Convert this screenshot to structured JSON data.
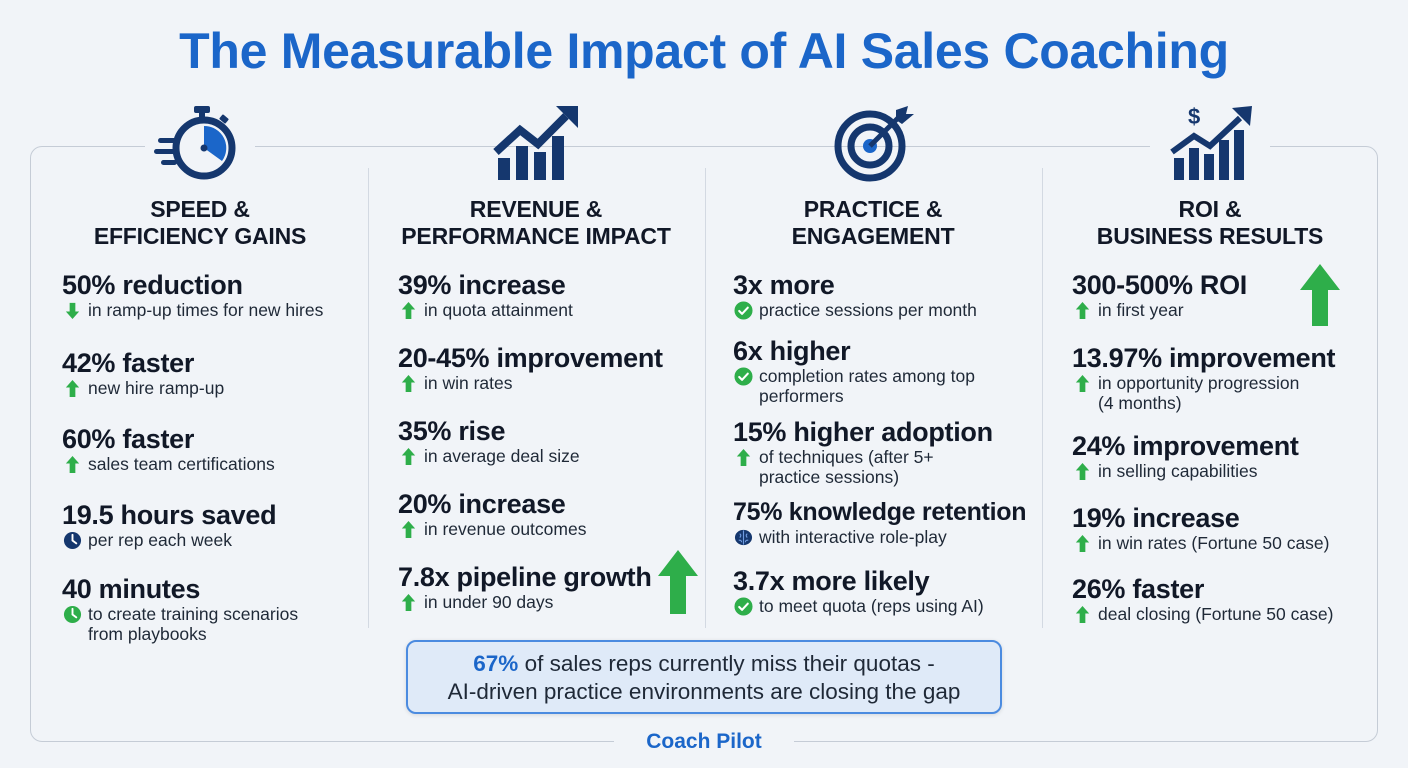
{
  "title": "The Measurable Impact of AI Sales Coaching",
  "colors": {
    "accent": "#1b66c9",
    "navy": "#15376e",
    "green": "#2eae4a"
  },
  "columns": [
    {
      "icon": "stopwatch-icon",
      "heading_line1": "SPEED &",
      "heading_line2": "EFFICIENCY GAINS",
      "stats": [
        {
          "value": "50% reduction",
          "desc_lines": [
            "in ramp-up times for new hires"
          ],
          "icon": "arrow-down-icon"
        },
        {
          "value": "42% faster",
          "desc_lines": [
            "new hire ramp-up"
          ],
          "icon": "arrow-up-icon"
        },
        {
          "value": "60% faster",
          "desc_lines": [
            "sales team certifications"
          ],
          "icon": "arrow-up-icon"
        },
        {
          "value": "19.5 hours saved",
          "desc_lines": [
            "per rep each week"
          ],
          "icon": "clock-navy-icon"
        },
        {
          "value": "40 minutes",
          "desc_lines": [
            "to create training scenarios",
            "from playbooks"
          ],
          "icon": "clock-green-icon"
        }
      ]
    },
    {
      "icon": "bar-chart-growth-icon",
      "heading_line1": "REVENUE &",
      "heading_line2": "PERFORMANCE IMPACT",
      "stats": [
        {
          "value": "39% increase",
          "desc_lines": [
            "in quota attainment"
          ],
          "icon": "arrow-up-icon"
        },
        {
          "value": "20-45% improvement",
          "desc_lines": [
            "in win rates"
          ],
          "icon": "arrow-up-icon"
        },
        {
          "value": "35% rise",
          "desc_lines": [
            "in average deal size"
          ],
          "icon": "arrow-up-icon"
        },
        {
          "value": "20% increase",
          "desc_lines": [
            "in revenue outcomes"
          ],
          "icon": "arrow-up-icon"
        },
        {
          "value": "7.8x pipeline growth",
          "desc_lines": [
            "in under 90 days"
          ],
          "icon": "arrow-up-icon"
        }
      ]
    },
    {
      "icon": "target-icon",
      "heading_line1": "PRACTICE &",
      "heading_line2": "ENGAGEMENT",
      "stats": [
        {
          "value": "3x more",
          "desc_lines": [
            "practice sessions per month"
          ],
          "icon": "check-circle-icon"
        },
        {
          "value": "6x higher",
          "desc_lines": [
            "completion rates among top",
            "performers"
          ],
          "icon": "check-circle-icon"
        },
        {
          "value": "15% higher adoption",
          "desc_lines": [
            "of techniques (after 5+",
            "practice sessions)"
          ],
          "icon": "arrow-up-icon"
        },
        {
          "value": "75% knowledge retention",
          "desc_lines": [
            "with interactive role-play"
          ],
          "icon": "brain-icon"
        },
        {
          "value": "3.7x more likely",
          "desc_lines": [
            "to meet quota (reps using AI)"
          ],
          "icon": "check-circle-icon"
        }
      ]
    },
    {
      "icon": "roi-chart-icon",
      "heading_line1": "ROI &",
      "heading_line2": "BUSINESS RESULTS",
      "stats": [
        {
          "value": "300-500% ROI",
          "desc_lines": [
            "in first year"
          ],
          "icon": "arrow-up-icon"
        },
        {
          "value": "13.97% improvement",
          "desc_lines": [
            "in opportunity progression",
            "(4 months)"
          ],
          "icon": "arrow-up-icon"
        },
        {
          "value": "24% improvement",
          "desc_lines": [
            "in selling capabilities"
          ],
          "icon": "arrow-up-icon"
        },
        {
          "value": "19% increase",
          "desc_lines": [
            "in win rates (Fortune 50 case)"
          ],
          "icon": "arrow-up-icon"
        },
        {
          "value": "26% faster",
          "desc_lines": [
            "deal closing (Fortune 50 case)"
          ],
          "icon": "arrow-up-icon"
        }
      ]
    }
  ],
  "callout": {
    "highlight": "67%",
    "line1_rest": " of sales reps currently miss their quotas -",
    "line2": "AI-driven practice environments are closing the gap"
  },
  "brand": "Coach Pilot"
}
